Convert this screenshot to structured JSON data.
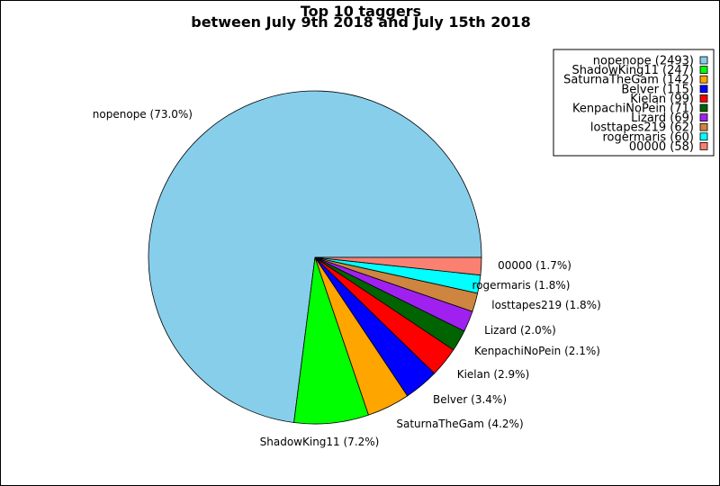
{
  "chart_data": {
    "type": "pie",
    "title": "Top 10 taggers",
    "subtitle": "between July 9th 2018 and July 15th 2018",
    "slices": [
      {
        "name": "nopenope",
        "value": 2493,
        "percent_label": "nopenope (73.0%)",
        "legend_label": "nopenope (2493)",
        "color": "#87ceeb"
      },
      {
        "name": "ShadowKing11",
        "value": 247,
        "percent_label": "ShadowKing11 (7.2%)",
        "legend_label": "ShadowKing11 (247)",
        "color": "#00ff00"
      },
      {
        "name": "SaturnaTheGam",
        "value": 142,
        "percent_label": "SaturnaTheGam (4.2%)",
        "legend_label": "SaturnaTheGam (142)",
        "color": "#ffa500"
      },
      {
        "name": "Belver",
        "value": 115,
        "percent_label": "Belver (3.4%)",
        "legend_label": "Belver (115)",
        "color": "#0000ff"
      },
      {
        "name": "Kielan",
        "value": 99,
        "percent_label": "Kielan (2.9%)",
        "legend_label": "Kielan (99)",
        "color": "#ff0000"
      },
      {
        "name": "KenpachiNoPein",
        "value": 71,
        "percent_label": "KenpachiNoPein (2.1%)",
        "legend_label": "KenpachiNoPein (71)",
        "color": "#006400"
      },
      {
        "name": "Lizard",
        "value": 69,
        "percent_label": "Lizard (2.0%)",
        "legend_label": "Lizard (69)",
        "color": "#a020f0"
      },
      {
        "name": "losttapes219",
        "value": 62,
        "percent_label": "losttapes219 (1.8%)",
        "legend_label": "losttapes219 (62)",
        "color": "#cd853f"
      },
      {
        "name": "rogermaris",
        "value": 60,
        "percent_label": "rogermaris (1.8%)",
        "legend_label": "rogermaris (60)",
        "color": "#00ffff"
      },
      {
        "name": "00000",
        "value": 58,
        "percent_label": "00000 (1.7%)",
        "legend_label": "00000 (58)",
        "color": "#fa8072"
      }
    ],
    "legend_position": "top-right"
  }
}
